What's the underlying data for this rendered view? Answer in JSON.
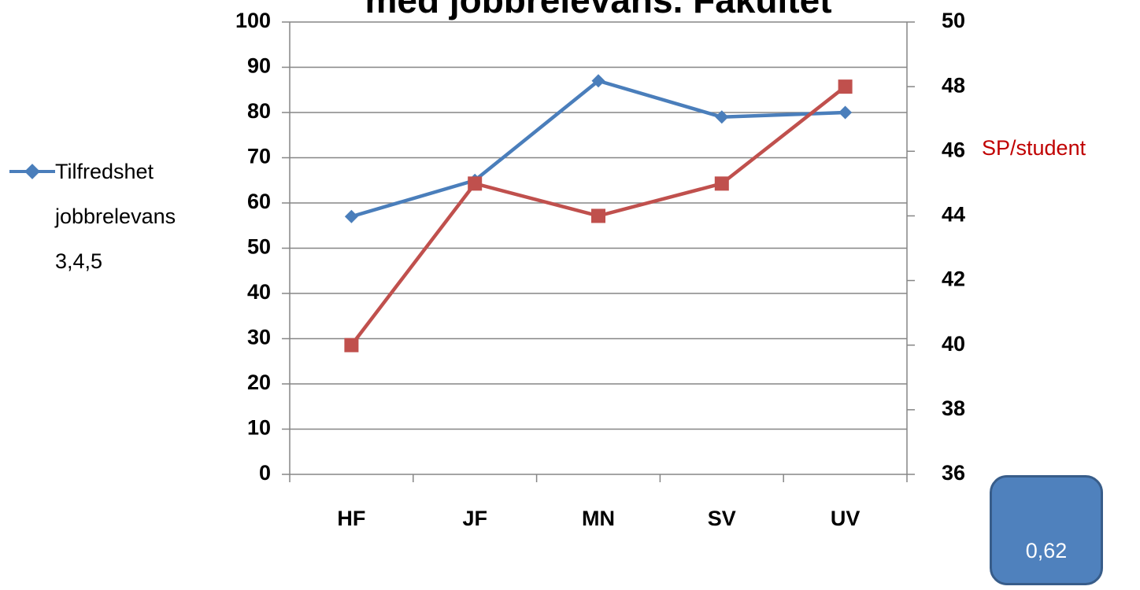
{
  "chart_data": {
    "type": "line",
    "title": "med jobbrelevans. Fakultet",
    "categories": [
      "HF",
      "JF",
      "MN",
      "SV",
      "UV"
    ],
    "series": [
      {
        "name": "Tilfredshet jobbrelevans 3,4,5",
        "color": "#4a7ebb",
        "marker": "diamond",
        "values": [
          57,
          65,
          87,
          79,
          80
        ]
      },
      {
        "name": "SP/student",
        "color": "#c0504d",
        "marker": "square",
        "axis": "y2",
        "values": [
          40,
          45,
          44,
          45,
          48
        ]
      }
    ],
    "ylim": [
      0,
      100
    ],
    "yticks": [
      0,
      10,
      20,
      30,
      40,
      50,
      60,
      70,
      80,
      90,
      100
    ],
    "y2lim": [
      36,
      50
    ],
    "y2ticks": [
      36,
      38,
      40,
      42,
      44,
      46,
      48,
      50
    ],
    "grid": true,
    "legend": "left",
    "annotations": [
      {
        "text": "0,62"
      }
    ]
  }
}
